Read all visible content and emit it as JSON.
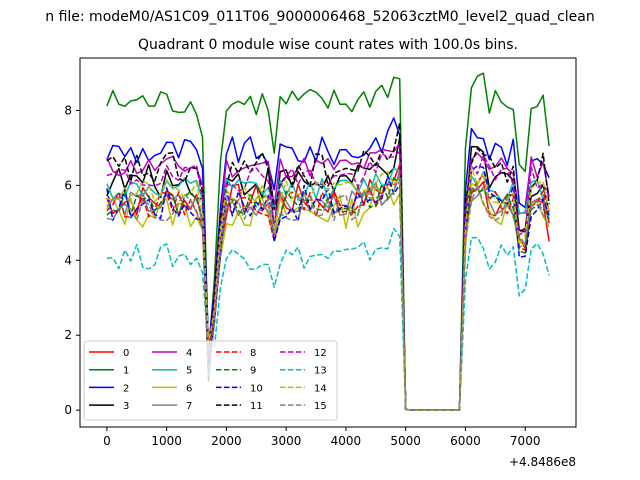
{
  "chart_data": {
    "type": "line",
    "suptitle": "n file: modeM0/AS1C09_011T06_9000006468_52063cztM0_level2_quad_clean",
    "title": "Quadrant 0 module wise count rates with 100.0s bins.",
    "xlabel": "",
    "ylabel": "",
    "x_offset_label": "+4.8486e8",
    "xlim": [
      -450,
      7850
    ],
    "ylim": [
      -0.45,
      9.4
    ],
    "x_ticks": [
      0,
      1000,
      2000,
      3000,
      4000,
      5000,
      6000,
      7000
    ],
    "y_ticks": [
      0,
      2,
      4,
      6,
      8
    ],
    "grid": false,
    "legend_position": "lower-left",
    "legend_columns": 4,
    "x": [
      0,
      100,
      200,
      300,
      400,
      500,
      600,
      700,
      800,
      900,
      1000,
      1100,
      1200,
      1300,
      1400,
      1500,
      1600,
      1700,
      1800,
      1900,
      2000,
      2100,
      2200,
      2300,
      2400,
      2500,
      2600,
      2700,
      2800,
      2900,
      3000,
      3100,
      3200,
      3300,
      3400,
      3500,
      3600,
      3700,
      3800,
      3900,
      4000,
      4100,
      4200,
      4300,
      4400,
      4500,
      4600,
      4700,
      4800,
      4900,
      5000,
      5100,
      5200,
      5300,
      5400,
      5500,
      5600,
      5700,
      5800,
      5900,
      6000,
      6100,
      6200,
      6300,
      6400,
      6500,
      6600,
      6700,
      6800,
      6900,
      7000,
      7100,
      7200,
      7300,
      7400
    ],
    "series": [
      {
        "name": "0",
        "color": "#ff0000",
        "dash": "solid",
        "level": 5.6,
        "amp": 0.45,
        "dip": 1.2,
        "end": 4.5
      },
      {
        "name": "1",
        "color": "#008000",
        "dash": "solid",
        "level": 8.2,
        "amp": 0.4,
        "dip": 1.8,
        "end": 7.05
      },
      {
        "name": "2",
        "color": "#0000ff",
        "dash": "solid",
        "level": 6.9,
        "amp": 0.4,
        "dip": 1.5,
        "end": 6.2
      },
      {
        "name": "3",
        "color": "#000000",
        "dash": "solid",
        "level": 6.1,
        "amp": 0.45,
        "dip": 1.4,
        "end": 5.3
      },
      {
        "name": "4",
        "color": "#bf00bf",
        "dash": "solid",
        "level": 6.5,
        "amp": 0.3,
        "dip": 1.3,
        "end": 5.7
      },
      {
        "name": "5",
        "color": "#00bfbf",
        "dash": "solid",
        "level": 5.9,
        "amp": 0.3,
        "dip": 0.7,
        "end": 5.1
      },
      {
        "name": "6",
        "color": "#bfbf00",
        "dash": "solid",
        "level": 5.3,
        "amp": 0.45,
        "dip": 1.0,
        "end": 4.9
      },
      {
        "name": "7",
        "color": "#808080",
        "dash": "solid",
        "level": 5.5,
        "amp": 0.35,
        "dip": 0.9,
        "end": 5.0
      },
      {
        "name": "8",
        "color": "#ff0000",
        "dash": "dashed",
        "level": 5.5,
        "amp": 0.35,
        "dip": 1.1,
        "end": 5.0
      },
      {
        "name": "9",
        "color": "#008000",
        "dash": "dashed",
        "level": 5.5,
        "amp": 0.35,
        "dip": 1.2,
        "end": 5.1
      },
      {
        "name": "10",
        "color": "#0000ff",
        "dash": "dashed",
        "level": 5.5,
        "amp": 0.5,
        "dip": 1.3,
        "end": 5.2
      },
      {
        "name": "11",
        "color": "#000000",
        "dash": "dashed",
        "level": 6.4,
        "amp": 0.5,
        "dip": 1.5,
        "end": 5.5
      },
      {
        "name": "12",
        "color": "#bf00bf",
        "dash": "dashed",
        "level": 6.2,
        "amp": 0.35,
        "dip": 1.4,
        "end": 5.7
      },
      {
        "name": "13",
        "color": "#00bfbf",
        "dash": "dashed",
        "level": 4.1,
        "amp": 0.35,
        "dip": 0.9,
        "end": 3.6
      },
      {
        "name": "14",
        "color": "#bfbf00",
        "dash": "dashed",
        "level": 5.8,
        "amp": 0.35,
        "dip": 1.2,
        "end": 5.3
      },
      {
        "name": "15",
        "color": "#808080",
        "dash": "dashed",
        "level": 5.4,
        "amp": 0.35,
        "dip": 1.0,
        "end": 4.9
      }
    ]
  }
}
